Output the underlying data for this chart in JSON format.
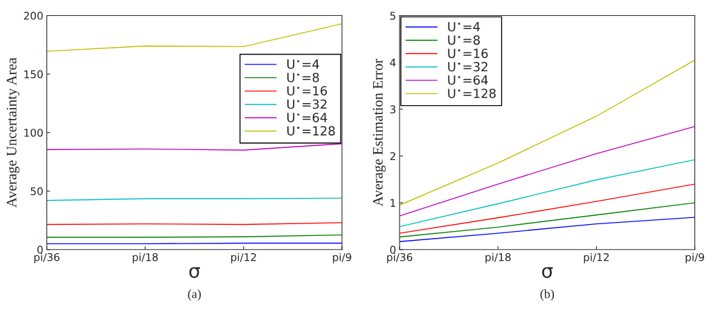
{
  "chart_data": [
    {
      "type": "line",
      "xlabel": "σ",
      "ylabel": "Average Uncertainty Area",
      "categories": [
        "pi/36",
        "pi/18",
        "pi/12",
        "pi/9"
      ],
      "ylim": [
        0,
        200
      ],
      "yticks": [
        0,
        50,
        100,
        150,
        200
      ],
      "grid": false,
      "legend": "top right",
      "annotations": [
        "(a)"
      ],
      "series": [
        {
          "name": "U$^{⋆}$=4",
          "color": "#0000ff",
          "values": [
            5,
            5,
            5.5,
            5.5
          ]
        },
        {
          "name": "U$^{⋆}$=8",
          "color": "#008000",
          "values": [
            10.5,
            10.5,
            11,
            12.5
          ]
        },
        {
          "name": "U$^{⋆}$=16",
          "color": "#ff0000",
          "values": [
            21.5,
            22,
            21.5,
            23
          ]
        },
        {
          "name": "U$^{⋆}$=32",
          "color": "#00bfbf",
          "values": [
            42,
            43.5,
            43.5,
            44
          ]
        },
        {
          "name": "U$^{⋆}$=64",
          "color": "#bf00bf",
          "values": [
            85.5,
            86,
            85,
            90.5
          ]
        },
        {
          "name": "U$^{⋆}$=128",
          "color": "#bfbf00",
          "values": [
            169.5,
            174,
            173.5,
            193
          ]
        }
      ]
    },
    {
      "type": "line",
      "xlabel": "σ",
      "ylabel": "Average Estimation Error",
      "categories": [
        "pi/36",
        "pi/18",
        "pi/12",
        "pi/9"
      ],
      "ylim": [
        0,
        5
      ],
      "yticks": [
        0,
        1,
        2,
        3,
        4,
        5
      ],
      "grid": false,
      "legend": "top left",
      "annotations": [
        "(b)"
      ],
      "series": [
        {
          "name": "U$^{⋆}$=4",
          "color": "#0000ff",
          "values": [
            0.17,
            0.35,
            0.55,
            0.69
          ]
        },
        {
          "name": "U$^{⋆}$=8",
          "color": "#008000",
          "values": [
            0.27,
            0.48,
            0.74,
            1.0
          ]
        },
        {
          "name": "U$^{⋆}$=16",
          "color": "#ff0000",
          "values": [
            0.35,
            0.68,
            1.03,
            1.4
          ]
        },
        {
          "name": "U$^{⋆}$=32",
          "color": "#00bfbf",
          "values": [
            0.49,
            0.98,
            1.49,
            1.92
          ]
        },
        {
          "name": "U$^{⋆}$=64",
          "color": "#bf00bf",
          "values": [
            0.72,
            1.4,
            2.05,
            2.63
          ]
        },
        {
          "name": "U$^{⋆}$=128",
          "color": "#bfbf00",
          "values": [
            0.95,
            1.85,
            2.85,
            4.05
          ]
        }
      ]
    }
  ]
}
